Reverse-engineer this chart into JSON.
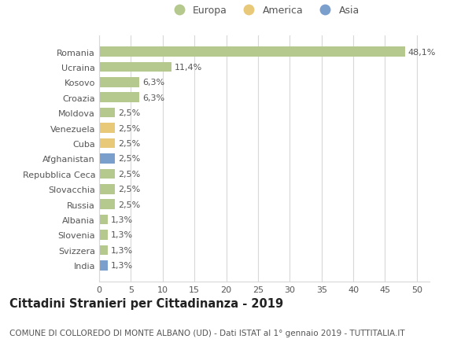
{
  "countries": [
    "Romania",
    "Ucraina",
    "Kosovo",
    "Croazia",
    "Moldova",
    "Venezuela",
    "Cuba",
    "Afghanistan",
    "Repubblica Ceca",
    "Slovacchia",
    "Russia",
    "Albania",
    "Slovenia",
    "Svizzera",
    "India"
  ],
  "values": [
    48.1,
    11.4,
    6.3,
    6.3,
    2.5,
    2.5,
    2.5,
    2.5,
    2.5,
    2.5,
    2.5,
    1.3,
    1.3,
    1.3,
    1.3
  ],
  "labels": [
    "48,1%",
    "11,4%",
    "6,3%",
    "6,3%",
    "2,5%",
    "2,5%",
    "2,5%",
    "2,5%",
    "2,5%",
    "2,5%",
    "2,5%",
    "1,3%",
    "1,3%",
    "1,3%",
    "1,3%"
  ],
  "categories": [
    "Europa",
    "America",
    "Asia"
  ],
  "bar_colors": [
    "#b5c98e",
    "#b5c98e",
    "#b5c98e",
    "#b5c98e",
    "#b5c98e",
    "#e8c97a",
    "#e8c97a",
    "#7b9fcc",
    "#b5c98e",
    "#b5c98e",
    "#b5c98e",
    "#b5c98e",
    "#b5c98e",
    "#b5c98e",
    "#7b9fcc"
  ],
  "legend_colors": {
    "Europa": "#b5c98e",
    "America": "#e8c97a",
    "Asia": "#7b9fcc"
  },
  "xlim": [
    0,
    52
  ],
  "xticks": [
    0,
    5,
    10,
    15,
    20,
    25,
    30,
    35,
    40,
    45,
    50
  ],
  "title": "Cittadini Stranieri per Cittadinanza - 2019",
  "subtitle": "COMUNE DI COLLOREDO DI MONTE ALBANO (UD) - Dati ISTAT al 1° gennaio 2019 - TUTTITALIA.IT",
  "bg_color": "#ffffff",
  "grid_color": "#d8d8d8",
  "bar_height": 0.65,
  "label_fontsize": 8,
  "title_fontsize": 10.5,
  "subtitle_fontsize": 7.5,
  "tick_fontsize": 8,
  "legend_fontsize": 9
}
